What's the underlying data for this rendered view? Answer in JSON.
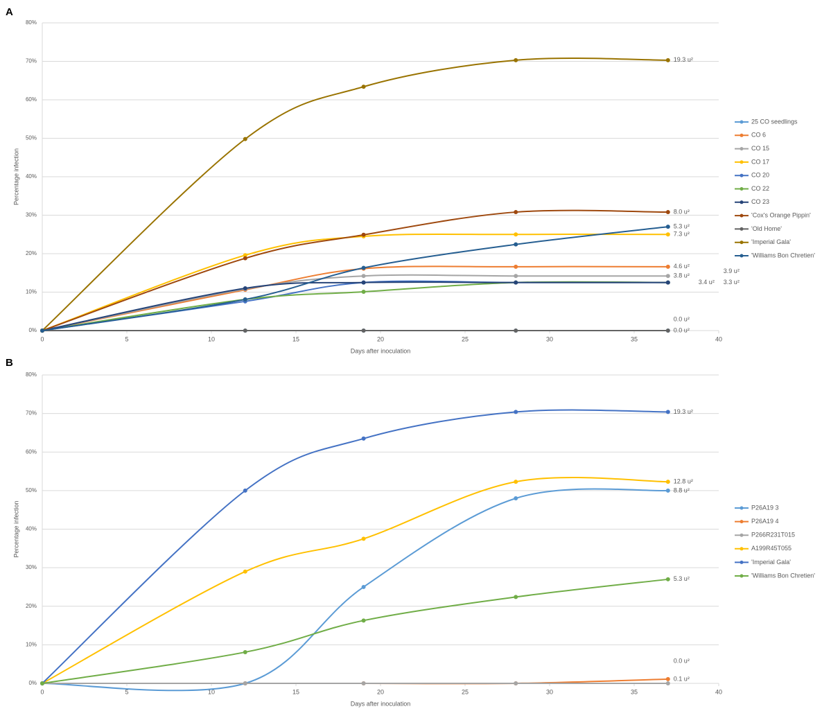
{
  "chart_data": [
    {
      "type": "line",
      "panel_label": "A",
      "x_label": "Days after inoculation",
      "y_label": "Percentage infection",
      "grid": true,
      "x": [
        0,
        12,
        19,
        28,
        37
      ],
      "xlim": [
        0,
        40
      ],
      "xticks": [
        0,
        5,
        10,
        15,
        20,
        25,
        30,
        35,
        40
      ],
      "ylim": [
        0,
        80
      ],
      "yticks": [
        {
          "value": 0,
          "label": "0%"
        },
        {
          "value": 10,
          "label": "10%"
        },
        {
          "value": 20,
          "label": "20%"
        },
        {
          "value": 30,
          "label": "30%"
        },
        {
          "value": 40,
          "label": "40%"
        },
        {
          "value": 50,
          "label": "50%"
        },
        {
          "value": 60,
          "label": "60%"
        },
        {
          "value": 70,
          "label": "70%"
        },
        {
          "value": 80,
          "label": "80%"
        }
      ],
      "series": [
        {
          "name": "25 CO seedlings",
          "color": "#5b9bd5",
          "values": [
            0,
            0,
            0,
            0,
            0
          ],
          "annotation": "0.0 u²"
        },
        {
          "name": "CO 6",
          "color": "#ed7d31",
          "values": [
            0,
            10.6,
            16.1,
            16.6,
            16.6
          ],
          "annotation": "4.6 u²"
        },
        {
          "name": "CO 15",
          "color": "#a5a5a5",
          "values": [
            0,
            10.8,
            14.2,
            14.2,
            14.2
          ],
          "annotation": "3.8 u²"
        },
        {
          "name": "CO 17",
          "color": "#ffc000",
          "values": [
            0,
            19.6,
            24.5,
            25,
            25
          ],
          "annotation": "7.3 u²"
        },
        {
          "name": "CO 20",
          "color": "#4472c4",
          "values": [
            0,
            7.6,
            12.5,
            12.5,
            12.5
          ],
          "annotation": "3.4 u²"
        },
        {
          "name": "CO 22",
          "color": "#70ad47",
          "values": [
            0,
            8.1,
            10.1,
            12.5,
            12.5
          ],
          "annotation": "3.3 u²"
        },
        {
          "name": "CO 23",
          "color": "#264478",
          "values": [
            0,
            11,
            12.5,
            12.5,
            12.5
          ],
          "annotation": "3.9 u²"
        },
        {
          "name": "'Cox's Orange Pippin'",
          "color": "#9e480e",
          "values": [
            0,
            18.8,
            24.9,
            30.8,
            30.8
          ],
          "annotation": "8.0 u²"
        },
        {
          "name": "'Old Home'",
          "color": "#636363",
          "values": [
            0,
            0,
            0,
            0,
            0
          ],
          "annotation": "0.0 u²"
        },
        {
          "name": "'Imperial Gala'",
          "color": "#997300",
          "values": [
            0,
            49.8,
            63.4,
            70.3,
            70.3
          ],
          "annotation": "19.3 u²"
        },
        {
          "name": "'Williams Bon Chretien'",
          "color": "#255e91",
          "values": [
            0,
            8.1,
            16.3,
            22.4,
            27
          ],
          "annotation": "5.3 u²"
        }
      ]
    },
    {
      "type": "line",
      "panel_label": "B",
      "x_label": "Days after inoculation",
      "y_label": "Percentage infection",
      "grid": true,
      "x": [
        0,
        12,
        19,
        28,
        37
      ],
      "xlim": [
        0,
        40
      ],
      "xticks": [
        0,
        5,
        10,
        15,
        20,
        25,
        30,
        35,
        40
      ],
      "ylim": [
        0,
        80
      ],
      "yticks": [
        {
          "value": 0,
          "label": "0%"
        },
        {
          "value": 10,
          "label": "10%"
        },
        {
          "value": 20,
          "label": "20%"
        },
        {
          "value": 30,
          "label": "30%"
        },
        {
          "value": 40,
          "label": "40%"
        },
        {
          "value": 50,
          "label": "50%"
        },
        {
          "value": 60,
          "label": "60%"
        },
        {
          "value": 70,
          "label": "70%"
        },
        {
          "value": 80,
          "label": "80%"
        }
      ],
      "series": [
        {
          "name": "P26A19 3",
          "color": "#5b9bd5",
          "values": [
            0,
            0,
            25,
            48,
            50
          ],
          "annotation": "8.8 u²"
        },
        {
          "name": "P26A19 4",
          "color": "#ed7d31",
          "values": [
            0,
            0,
            0,
            0,
            1.1
          ],
          "annotation": "0.1 u²"
        },
        {
          "name": "P266R231T015",
          "color": "#a5a5a5",
          "values": [
            0,
            0,
            0,
            0,
            0
          ],
          "annotation": "0.0 u²"
        },
        {
          "name": "A199R45T055",
          "color": "#ffc000",
          "values": [
            0,
            29,
            37.5,
            52.3,
            52.3
          ],
          "annotation": "12.8 u²"
        },
        {
          "name": "'Imperial Gala'",
          "color": "#4472c4",
          "values": [
            0,
            50,
            63.5,
            70.4,
            70.4
          ],
          "annotation": "19.3 u²"
        },
        {
          "name": "'Williams Bon Chretien'",
          "color": "#70ad47",
          "values": [
            0,
            8.1,
            16.3,
            22.4,
            27
          ],
          "annotation": "5.3 u²"
        }
      ]
    }
  ]
}
